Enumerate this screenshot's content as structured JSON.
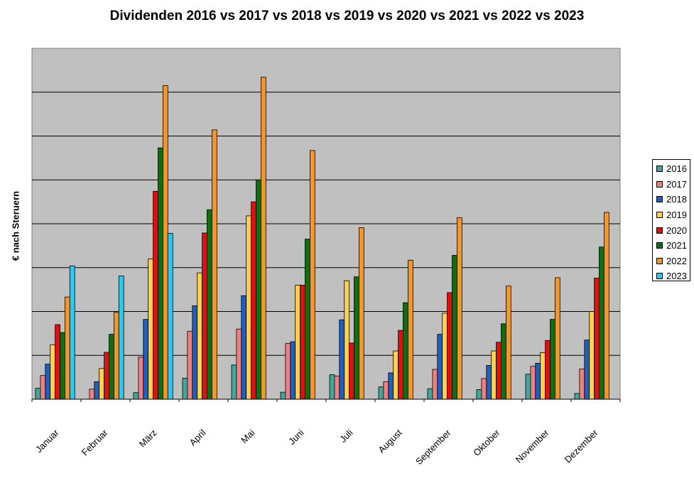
{
  "chart_data": {
    "type": "bar",
    "title": "Dividenden 2016 vs 2017 vs 2018 vs 2019 vs 2020 vs 2021 vs 2022 vs 2023",
    "xlabel": "",
    "ylabel": "€ nach Steruern",
    "ylim": [
      0,
      8
    ],
    "grid": true,
    "legend": "right",
    "categories": [
      "Januar",
      "Februar",
      "März",
      "April",
      "Mai",
      "Juni",
      "Juli",
      "August",
      "September",
      "Oktober",
      "November",
      "Dezember"
    ],
    "series": [
      {
        "name": "2016",
        "color": "#3fa79b",
        "values": [
          0.25,
          0,
          0.15,
          0.48,
          0.78,
          0.16,
          0.56,
          0.28,
          0.24,
          0.22,
          0.57,
          0.13
        ]
      },
      {
        "name": "2017",
        "color": "#f08080",
        "values": [
          0.54,
          0.23,
          0.96,
          1.55,
          1.6,
          1.27,
          0.53,
          0.4,
          0.68,
          0.47,
          0.75,
          0.69
        ]
      },
      {
        "name": "2018",
        "color": "#1f5fbf",
        "values": [
          0.8,
          0.4,
          1.82,
          2.13,
          2.36,
          1.31,
          1.81,
          0.6,
          1.48,
          0.77,
          0.82,
          1.35
        ]
      },
      {
        "name": "2019",
        "color": "#ffd24a",
        "values": [
          1.24,
          0.7,
          3.2,
          2.88,
          4.18,
          2.6,
          2.7,
          1.1,
          1.96,
          1.1,
          1.06,
          2.0
        ]
      },
      {
        "name": "2020",
        "color": "#e01010",
        "values": [
          1.7,
          1.07,
          4.74,
          3.79,
          4.5,
          2.6,
          1.28,
          1.57,
          2.43,
          1.3,
          1.34,
          2.76
        ]
      },
      {
        "name": "2021",
        "color": "#0f6e14",
        "values": [
          1.52,
          1.48,
          5.73,
          4.32,
          5.0,
          3.65,
          2.79,
          2.2,
          3.28,
          1.72,
          1.82,
          3.47
        ]
      },
      {
        "name": "2022",
        "color": "#f4962a",
        "values": [
          2.33,
          1.98,
          7.15,
          6.14,
          7.34,
          5.67,
          3.91,
          3.17,
          4.14,
          2.58,
          2.77,
          4.26
        ]
      },
      {
        "name": "2023",
        "color": "#2ec8f0",
        "values": [
          3.04,
          2.81,
          3.78,
          0,
          0,
          0,
          0,
          0,
          0,
          0,
          0,
          0
        ]
      }
    ]
  }
}
